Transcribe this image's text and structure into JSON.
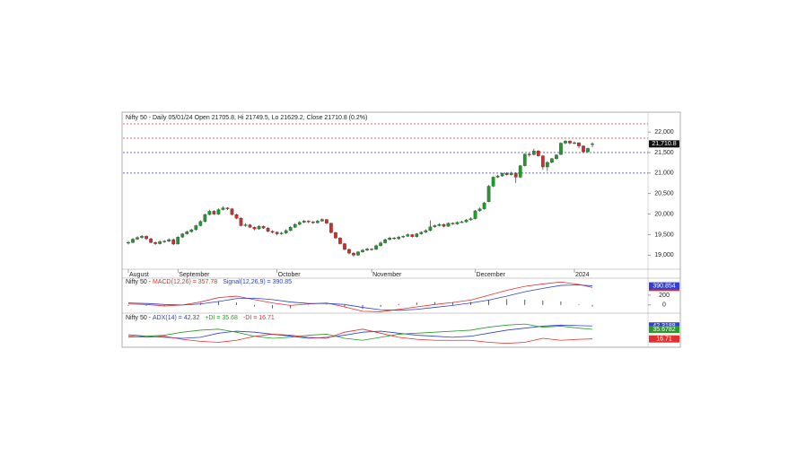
{
  "chart_data": [
    {
      "type": "candlestick",
      "title": "Nifty 50 - Daily 05/01/24 Open 21705.8, Hi 21749.5, Lo 21629.2, Close 21710.8 (0.2%)",
      "up_color": "#1f9a2a",
      "down_color": "#d42a2a",
      "ylim": [
        18680,
        22440
      ],
      "yticks": [
        {
          "value": 19000,
          "label": "19,000"
        },
        {
          "value": 19500,
          "label": "19,500"
        },
        {
          "value": 20000,
          "label": "20,000"
        },
        {
          "value": 20500,
          "label": "20,500"
        },
        {
          "value": 21000,
          "label": "21,000"
        },
        {
          "value": 21500,
          "label": "21,500"
        },
        {
          "value": 22000,
          "label": "22,000"
        }
      ],
      "close_label": {
        "value": 21710.8,
        "label": "21,710.8"
      },
      "hlines": [
        {
          "value": 22200,
          "color": "#e03030"
        },
        {
          "value": 21850,
          "color": "#e03030"
        },
        {
          "value": 21500,
          "color": "#3030d0"
        },
        {
          "value": 21000,
          "color": "#3030d0"
        }
      ],
      "months": [
        "August",
        "September",
        "October",
        "November",
        "December",
        "2024"
      ],
      "month_x": [
        0,
        11,
        33,
        54,
        77,
        99
      ],
      "candles": [
        [
          19300,
          19350,
          19260,
          19310
        ],
        [
          19310,
          19420,
          19290,
          19390
        ],
        [
          19390,
          19460,
          19370,
          19430
        ],
        [
          19430,
          19490,
          19400,
          19460
        ],
        [
          19460,
          19480,
          19370,
          19400
        ],
        [
          19400,
          19420,
          19290,
          19310
        ],
        [
          19310,
          19330,
          19250,
          19280
        ],
        [
          19280,
          19360,
          19260,
          19330
        ],
        [
          19330,
          19370,
          19300,
          19340
        ],
        [
          19340,
          19410,
          19320,
          19380
        ],
        [
          19380,
          19400,
          19250,
          19270
        ],
        [
          19270,
          19460,
          19260,
          19440
        ],
        [
          19440,
          19540,
          19420,
          19520
        ],
        [
          19520,
          19600,
          19500,
          19570
        ],
        [
          19570,
          19640,
          19550,
          19620
        ],
        [
          19620,
          19740,
          19600,
          19720
        ],
        [
          19720,
          19850,
          19700,
          19820
        ],
        [
          19820,
          20010,
          19800,
          19990
        ],
        [
          19990,
          20110,
          19970,
          20070
        ],
        [
          20070,
          20100,
          19980,
          20000
        ],
        [
          20000,
          20140,
          19980,
          20110
        ],
        [
          20110,
          20190,
          20090,
          20150
        ],
        [
          20150,
          20170,
          20100,
          20130
        ],
        [
          20130,
          20150,
          19970,
          19990
        ],
        [
          19990,
          20010,
          19880,
          19900
        ],
        [
          19900,
          19920,
          19700,
          19720
        ],
        [
          19720,
          19780,
          19690,
          19740
        ],
        [
          19740,
          19760,
          19660,
          19680
        ],
        [
          19680,
          19700,
          19610,
          19640
        ],
        [
          19640,
          19730,
          19620,
          19700
        ],
        [
          19700,
          19720,
          19640,
          19660
        ],
        [
          19660,
          19680,
          19560,
          19580
        ],
        [
          19580,
          19610,
          19530,
          19560
        ],
        [
          19560,
          19580,
          19480,
          19520
        ],
        [
          19520,
          19570,
          19500,
          19540
        ],
        [
          19540,
          19630,
          19520,
          19600
        ],
        [
          19600,
          19710,
          19580,
          19680
        ],
        [
          19680,
          19780,
          19660,
          19750
        ],
        [
          19750,
          19830,
          19730,
          19800
        ],
        [
          19800,
          19860,
          19780,
          19830
        ],
        [
          19830,
          19850,
          19780,
          19810
        ],
        [
          19810,
          19830,
          19760,
          19790
        ],
        [
          19790,
          19860,
          19770,
          19830
        ],
        [
          19830,
          19900,
          19810,
          19870
        ],
        [
          19870,
          19880,
          19760,
          19780
        ],
        [
          19780,
          19790,
          19530,
          19550
        ],
        [
          19550,
          19570,
          19400,
          19420
        ],
        [
          19420,
          19440,
          19260,
          19280
        ],
        [
          19280,
          19300,
          19120,
          19140
        ],
        [
          19140,
          19160,
          19020,
          19050
        ],
        [
          19050,
          19070,
          18960,
          19000
        ],
        [
          19000,
          19100,
          18980,
          19080
        ],
        [
          19080,
          19150,
          19060,
          19120
        ],
        [
          19120,
          19180,
          19100,
          19150
        ],
        [
          19150,
          19170,
          19110,
          19140
        ],
        [
          19140,
          19260,
          19130,
          19230
        ],
        [
          19230,
          19330,
          19210,
          19300
        ],
        [
          19300,
          19400,
          19280,
          19380
        ],
        [
          19380,
          19450,
          19360,
          19420
        ],
        [
          19420,
          19440,
          19380,
          19400
        ],
        [
          19400,
          19470,
          19380,
          19440
        ],
        [
          19440,
          19480,
          19420,
          19460
        ],
        [
          19460,
          19530,
          19440,
          19500
        ],
        [
          19500,
          19520,
          19430,
          19450
        ],
        [
          19450,
          19540,
          19430,
          19520
        ],
        [
          19520,
          19580,
          19500,
          19560
        ],
        [
          19560,
          19630,
          19540,
          19600
        ],
        [
          19600,
          19850,
          19580,
          19690
        ],
        [
          19690,
          19740,
          19670,
          19720
        ],
        [
          19720,
          19780,
          19700,
          19750
        ],
        [
          19750,
          19770,
          19680,
          19700
        ],
        [
          19700,
          19800,
          19690,
          19780
        ],
        [
          19780,
          19800,
          19740,
          19760
        ],
        [
          19760,
          19820,
          19740,
          19800
        ],
        [
          19800,
          19840,
          19780,
          19810
        ],
        [
          19810,
          19880,
          19790,
          19860
        ],
        [
          19860,
          19920,
          19840,
          19890
        ],
        [
          19890,
          20100,
          19870,
          20080
        ],
        [
          20080,
          20160,
          20060,
          20130
        ],
        [
          20130,
          20300,
          20110,
          20270
        ],
        [
          20300,
          20710,
          20290,
          20680
        ],
        [
          20680,
          20920,
          20660,
          20900
        ],
        [
          20900,
          20960,
          20880,
          20930
        ],
        [
          20930,
          21010,
          20910,
          20990
        ],
        [
          20990,
          21020,
          20940,
          20960
        ],
        [
          20960,
          21030,
          20940,
          21000
        ],
        [
          21000,
          21020,
          20760,
          20900
        ],
        [
          20900,
          21200,
          20880,
          21180
        ],
        [
          21180,
          21480,
          21160,
          21460
        ],
        [
          21460,
          21490,
          21400,
          21450
        ],
        [
          21450,
          21590,
          21430,
          21540
        ],
        [
          21540,
          21560,
          21400,
          21420
        ],
        [
          21420,
          21440,
          21080,
          21150
        ],
        [
          21150,
          21290,
          21050,
          21260
        ],
        [
          21260,
          21370,
          21240,
          21350
        ],
        [
          21350,
          21460,
          21330,
          21440
        ],
        [
          21450,
          21750,
          21440,
          21730
        ],
        [
          21730,
          21800,
          21700,
          21780
        ],
        [
          21780,
          21800,
          21700,
          21730
        ],
        [
          21730,
          21770,
          21700,
          21740
        ],
        [
          21740,
          21750,
          21600,
          21660
        ],
        [
          21660,
          21680,
          21500,
          21520
        ],
        [
          21520,
          21620,
          21500,
          21600
        ],
        [
          21705.8,
          21749.5,
          21629.2,
          21710.8
        ]
      ]
    },
    {
      "type": "line",
      "label": "Nifty 50 -",
      "ylim": [
        -150,
        530
      ],
      "yticks": [
        0,
        200
      ],
      "x": [
        0,
        4,
        8,
        12,
        16,
        20,
        24,
        28,
        32,
        36,
        40,
        44,
        48,
        52,
        56,
        60,
        64,
        68,
        72,
        76,
        80,
        84,
        88,
        92,
        96,
        100,
        103
      ],
      "histogram": {
        "color": "#333333",
        "values": [
          -20,
          -20,
          -30,
          0,
          40,
          80,
          50,
          -30,
          -70,
          -70,
          -10,
          10,
          -50,
          -80,
          -40,
          20,
          50,
          60,
          60,
          60,
          100,
          120,
          110,
          90,
          70,
          10,
          -33
        ]
      },
      "series": [
        {
          "name": "MACD(12,26) = 357.78",
          "color": "#e03030",
          "last_label": "357.78",
          "values": [
            20,
            10,
            -20,
            0,
            60,
            150,
            180,
            110,
            40,
            -10,
            20,
            40,
            -40,
            -130,
            -140,
            -90,
            -40,
            10,
            50,
            100,
            200,
            300,
            380,
            430,
            470,
            420,
            357.78
          ]
        },
        {
          "name": "Signal(12,26,9) = 390.85",
          "color": "#3040d0",
          "last_label": "390.854",
          "values": [
            40,
            30,
            10,
            0,
            20,
            70,
            130,
            140,
            110,
            60,
            30,
            30,
            10,
            -50,
            -100,
            -110,
            -90,
            -50,
            -10,
            40,
            100,
            180,
            270,
            340,
            400,
            410,
            390.85
          ]
        }
      ]
    },
    {
      "type": "line",
      "label": "Nifty 50 -",
      "ylim": [
        2,
        64
      ],
      "yticks": [],
      "x": [
        0,
        4,
        8,
        12,
        16,
        20,
        24,
        28,
        32,
        36,
        40,
        44,
        48,
        52,
        56,
        60,
        64,
        68,
        72,
        76,
        80,
        84,
        88,
        92,
        96,
        100,
        103
      ],
      "series": [
        {
          "name": "ADX(14) = 42.32",
          "color": "#3040d0",
          "last_label": "42.3188",
          "values": [
            25,
            22,
            20,
            18,
            20,
            28,
            32,
            30,
            26,
            22,
            18,
            20,
            24,
            30,
            32,
            28,
            24,
            22,
            20,
            22,
            28,
            34,
            38,
            42,
            44,
            43,
            42.32
          ]
        },
        {
          "name": "+DI = 35.68",
          "color": "#2a9a2a",
          "last_label": "35.6782",
          "values": [
            20,
            22,
            24,
            30,
            34,
            36,
            30,
            22,
            18,
            20,
            24,
            26,
            18,
            14,
            20,
            26,
            28,
            30,
            32,
            34,
            40,
            44,
            46,
            40,
            42,
            38,
            35.68
          ]
        },
        {
          "name": "-DI = 16.71",
          "color": "#e03030",
          "last_label": "16.71",
          "values": [
            22,
            20,
            22,
            16,
            12,
            10,
            14,
            22,
            26,
            24,
            20,
            18,
            30,
            36,
            28,
            20,
            16,
            14,
            14,
            14,
            10,
            8,
            10,
            18,
            14,
            16,
            16.71
          ]
        }
      ]
    }
  ]
}
